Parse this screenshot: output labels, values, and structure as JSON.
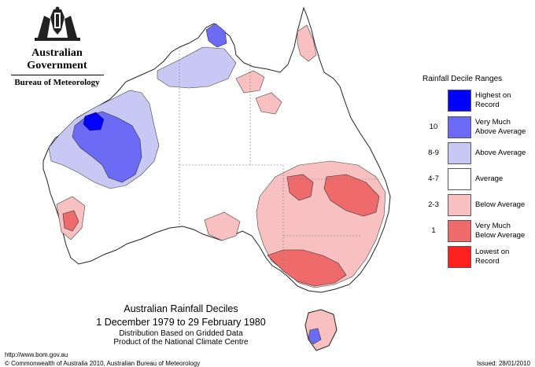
{
  "header": {
    "government": "Australian Government",
    "bureau": "Bureau of Meteorology"
  },
  "legend": {
    "title": "Rainfall Decile Ranges",
    "items": [
      {
        "key": "",
        "label_line1": "Highest on",
        "label_line2": "Record",
        "color": "#0000ff"
      },
      {
        "key": "10",
        "label_line1": "Very Much",
        "label_line2": "Above Average",
        "color": "#6b6bf5"
      },
      {
        "key": "8-9",
        "label_line1": "Above Average",
        "label_line2": "",
        "color": "#c8c8f5"
      },
      {
        "key": "4-7",
        "label_line1": "Average",
        "label_line2": "",
        "color": "#ffffff"
      },
      {
        "key": "2-3",
        "label_line1": "Below Average",
        "label_line2": "",
        "color": "#f8c0c0"
      },
      {
        "key": "1",
        "label_line1": "Very Much",
        "label_line2": "Below Average",
        "color": "#ef6b6b"
      },
      {
        "key": "",
        "label_line1": "Lowest on",
        "label_line2": "Record",
        "color": "#ff2020"
      }
    ]
  },
  "caption": {
    "title": "Australian Rainfall Deciles",
    "period": "1 December 1979 to 29 February 1980",
    "note1": "Distribution Based on Gridded Data",
    "note2": "Product of the National Climate Centre"
  },
  "footer": {
    "url": "http://www.bom.gov.au",
    "copyright": "© Commonwealth of Australia 2010, Australian Bureau of Meteorology",
    "issued": "Issued: 28/01/2010"
  },
  "colors": {
    "highest": "#0000ff",
    "very_much_above": "#6b6bf5",
    "above": "#c8c8f5",
    "average": "#ffffff",
    "below": "#f8c0c0",
    "very_much_below": "#ef6b6b",
    "lowest": "#ff2020"
  }
}
